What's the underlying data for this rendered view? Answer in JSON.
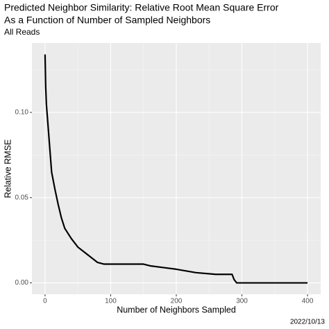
{
  "chart_data": {
    "type": "line",
    "title": "Predicted Neighbor Similarity: Relative Root Mean Square Error",
    "title_line2": "As a Function of Number of Sampled Neighbors",
    "subtitle": "All Reads",
    "x_label": "Number of Neighbors Sampled",
    "y_label": "Relative RMSE",
    "caption": "2022/10/13",
    "x": [
      0,
      1,
      2,
      4,
      6,
      8,
      10,
      15,
      20,
      25,
      30,
      40,
      50,
      60,
      70,
      80,
      90,
      100,
      120,
      150,
      160,
      180,
      200,
      230,
      260,
      285,
      288,
      292,
      400
    ],
    "series": [
      {
        "name": "Relative RMSE",
        "color": "#000000",
        "values": [
          0.134,
          0.115,
          0.105,
          0.095,
          0.085,
          0.075,
          0.065,
          0.055,
          0.046,
          0.038,
          0.032,
          0.026,
          0.021,
          0.018,
          0.015,
          0.012,
          0.011,
          0.011,
          0.011,
          0.011,
          0.01,
          0.009,
          0.008,
          0.006,
          0.005,
          0.005,
          0.002,
          0,
          0
        ]
      }
    ],
    "xlim": [
      -20,
      420
    ],
    "ylim": [
      -0.0067,
      0.1407
    ],
    "xticks": [
      0,
      100,
      200,
      300,
      400
    ],
    "yticks": [
      {
        "value": 0,
        "label": "0.00"
      },
      {
        "value": 0.05,
        "label": "0.05"
      },
      {
        "value": 0.1,
        "label": "0.10"
      }
    ],
    "x_minor_ticks": [
      50,
      150,
      250,
      350
    ],
    "y_minor_ticks": [
      0.025,
      0.075,
      0.125
    ],
    "grid": true
  }
}
